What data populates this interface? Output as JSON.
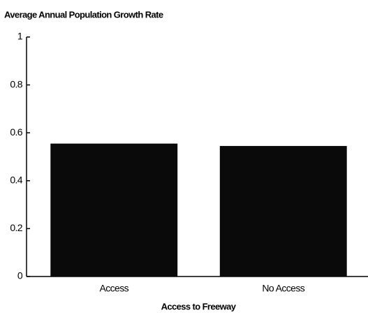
{
  "chart_data": {
    "type": "bar",
    "title": "Average Annual Population Growth Rate",
    "x_label": "Access to Freeway",
    "categories": [
      "Access",
      "No Access"
    ],
    "values": [
      0.555,
      0.545
    ],
    "color": "#0a0a0a",
    "ylim": [
      0,
      1
    ],
    "yticks": [
      0,
      0.2,
      0.4,
      0.6,
      0.8,
      1
    ],
    "grid": false
  }
}
